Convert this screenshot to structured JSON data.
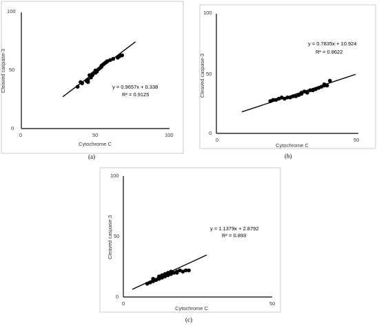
{
  "chart_data": [
    {
      "type": "scatter",
      "panel_label": "(a)",
      "xlabel": "Cytochrome C",
      "ylabel": "Cleaved caspase-3",
      "xlim": [
        0,
        100
      ],
      "ylim": [
        0,
        100
      ],
      "xticks": [
        "0",
        "50",
        "100"
      ],
      "yticks": [
        "0",
        "50",
        "100"
      ],
      "grid": false,
      "equation": "y = 0.9657x + 0.338",
      "r2": "R² = 0.9125",
      "trend": {
        "slope": 0.9657,
        "intercept": 0.338,
        "x_range": [
          28,
          77
        ]
      },
      "points": [
        [
          38,
          36
        ],
        [
          40,
          40
        ],
        [
          41,
          39
        ],
        [
          44,
          41
        ],
        [
          45,
          40
        ],
        [
          45,
          42
        ],
        [
          46,
          46
        ],
        [
          47,
          44
        ],
        [
          48,
          46
        ],
        [
          48,
          47
        ],
        [
          49,
          48
        ],
        [
          50,
          48
        ],
        [
          50,
          50
        ],
        [
          51,
          49
        ],
        [
          52,
          51
        ],
        [
          53,
          52
        ],
        [
          54,
          53
        ],
        [
          54,
          54
        ],
        [
          55,
          55
        ],
        [
          56,
          56
        ],
        [
          57,
          57
        ],
        [
          58,
          58
        ],
        [
          60,
          59
        ],
        [
          62,
          60
        ],
        [
          65,
          61
        ],
        [
          66,
          62
        ],
        [
          67,
          63
        ],
        [
          68,
          63
        ]
      ]
    },
    {
      "type": "scatter",
      "panel_label": "(b)",
      "xlabel": "Cytochrome C",
      "ylabel": "Cleaved caspase-3",
      "xlim": [
        0,
        50
      ],
      "ylim": [
        0,
        100
      ],
      "xticks": [
        "0",
        "50"
      ],
      "yticks": [
        "0",
        "50",
        "100"
      ],
      "grid": false,
      "equation": "y = 0.7835x + 10.924",
      "r2": "R² = 0.8622",
      "trend": {
        "slope": 0.7835,
        "intercept": 10.924,
        "x_range": [
          9,
          49
        ]
      },
      "points": [
        [
          19,
          27
        ],
        [
          20,
          28
        ],
        [
          21,
          28
        ],
        [
          22,
          29
        ],
        [
          23,
          30
        ],
        [
          24,
          29
        ],
        [
          25,
          30
        ],
        [
          26,
          30
        ],
        [
          27,
          31
        ],
        [
          28,
          31
        ],
        [
          29,
          32
        ],
        [
          30,
          33
        ],
        [
          30,
          34
        ],
        [
          31,
          35
        ],
        [
          32,
          34
        ],
        [
          33,
          36
        ],
        [
          34,
          36
        ],
        [
          35,
          37
        ],
        [
          36,
          38
        ],
        [
          37,
          39
        ],
        [
          38,
          40
        ],
        [
          38,
          41
        ],
        [
          39,
          40
        ],
        [
          40,
          44
        ]
      ]
    },
    {
      "type": "scatter",
      "panel_label": "(c)",
      "xlabel": "Cytochrome C",
      "ylabel": "Cleaved caspase-3",
      "xlim": [
        0,
        50
      ],
      "ylim": [
        0,
        100
      ],
      "xticks": [
        "0",
        "50"
      ],
      "yticks": [
        "0",
        "50",
        "100"
      ],
      "grid": false,
      "equation": "y = 1.1379x + 2.8792",
      "r2": "R² = 0.893",
      "trend": {
        "slope": 1.1379,
        "intercept": 2.8792,
        "x_range": [
          3,
          28
        ]
      },
      "points": [
        [
          8,
          11
        ],
        [
          9,
          12
        ],
        [
          10,
          13
        ],
        [
          10,
          15
        ],
        [
          11,
          14
        ],
        [
          12,
          15
        ],
        [
          12,
          17
        ],
        [
          13,
          16
        ],
        [
          13,
          18
        ],
        [
          14,
          17
        ],
        [
          14,
          19
        ],
        [
          15,
          18
        ],
        [
          15,
          20
        ],
        [
          16,
          19
        ],
        [
          16,
          21
        ],
        [
          17,
          20
        ],
        [
          18,
          21
        ],
        [
          18,
          20
        ],
        [
          19,
          22
        ],
        [
          20,
          21
        ],
        [
          21,
          22
        ],
        [
          22,
          22
        ]
      ]
    }
  ]
}
